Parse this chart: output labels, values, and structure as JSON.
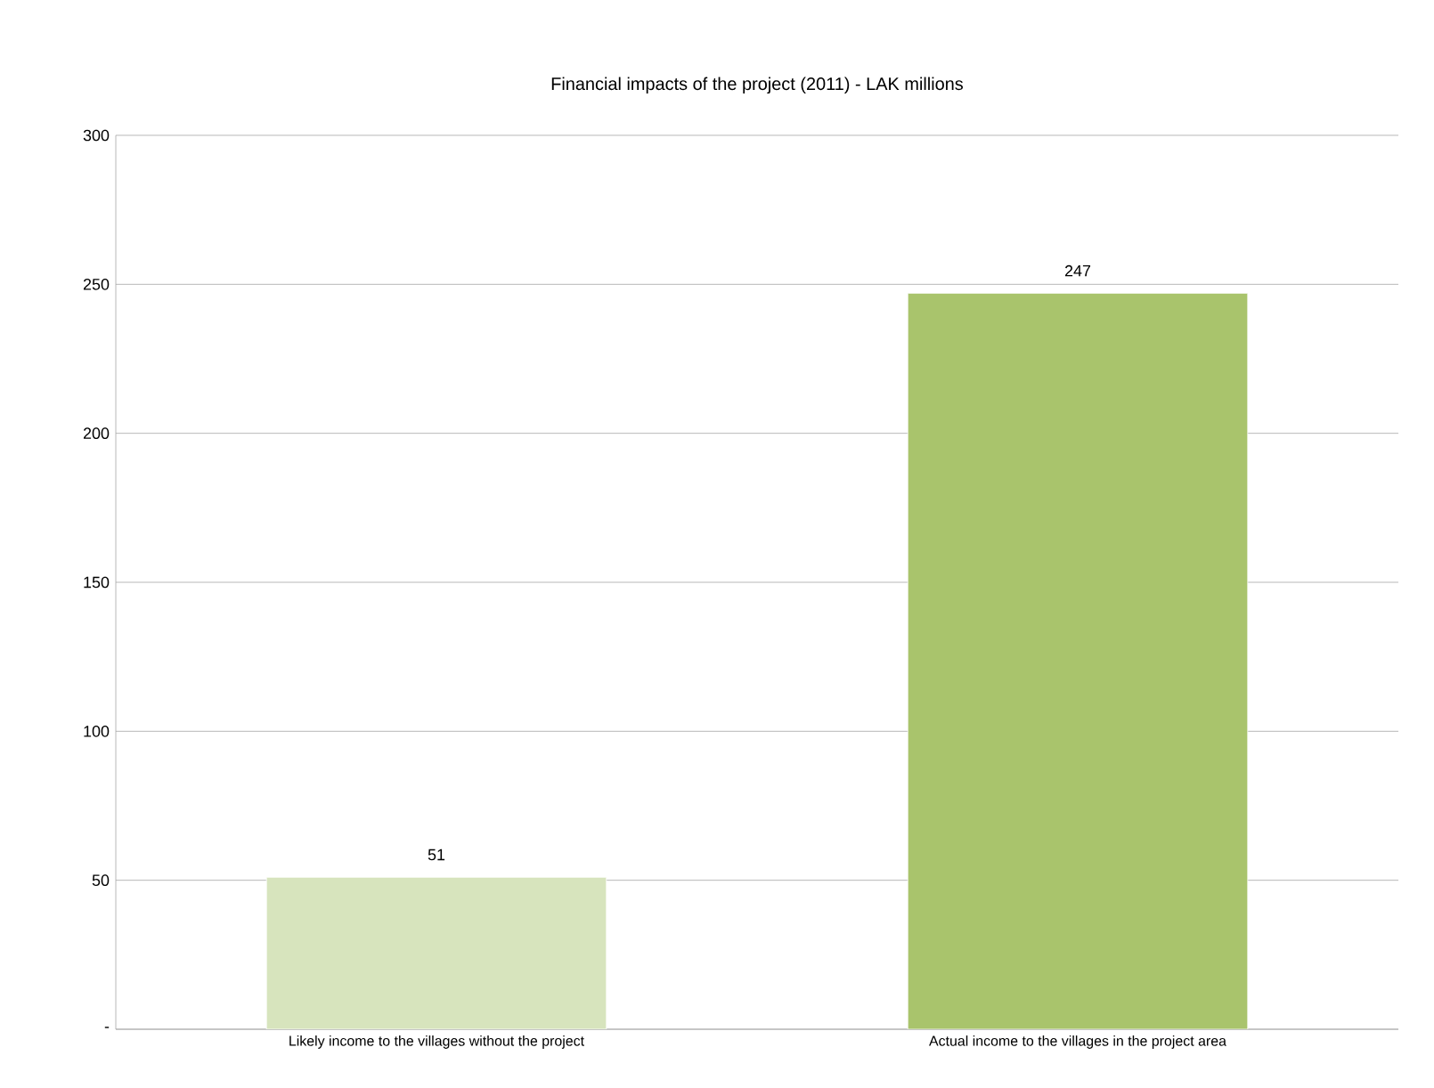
{
  "chart_data": {
    "type": "bar",
    "title": "Financial impacts of the project (2011) - LAK millions",
    "categories": [
      "Likely income to the villages without the project",
      "Actual income to the villages in the project area"
    ],
    "values": [
      51,
      247
    ],
    "colors": [
      "#d7e4bd",
      "#a9c46c"
    ],
    "ylim": [
      0,
      300
    ],
    "yticks": [
      {
        "value": 0,
        "label": "-"
      },
      50,
      100,
      150,
      200,
      250,
      300
    ],
    "grid": "y",
    "data_labels": true
  }
}
